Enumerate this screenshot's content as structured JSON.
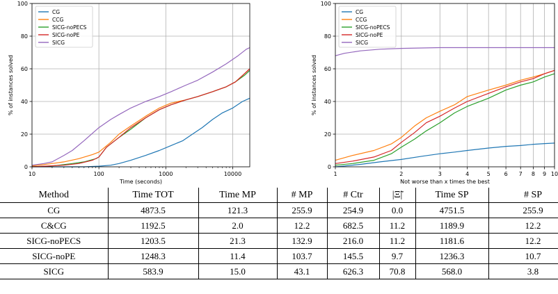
{
  "chart_data": [
    {
      "type": "line",
      "title": "",
      "xlabel": "Time (seconds)",
      "ylabel": "% of instances solved",
      "x_scale": "log",
      "xlim": [
        10,
        18000
      ],
      "ylim": [
        0,
        100
      ],
      "x_ticks": [
        10,
        100,
        1000,
        10000
      ],
      "x_tick_labels": [
        "10",
        "100",
        "1000",
        "10000"
      ],
      "y_ticks": [
        0,
        20,
        40,
        60,
        80,
        100
      ],
      "grid": true,
      "legend": "top-left",
      "series": [
        {
          "name": "CG",
          "color": "#1f77b4",
          "points": [
            [
              10,
              0
            ],
            [
              60,
              0
            ],
            [
              100,
              0.4
            ],
            [
              150,
              1
            ],
            [
              200,
              2
            ],
            [
              300,
              4
            ],
            [
              500,
              7
            ],
            [
              800,
              10
            ],
            [
              1200,
              13
            ],
            [
              1800,
              16
            ],
            [
              2500,
              20
            ],
            [
              3500,
              24
            ],
            [
              5000,
              29
            ],
            [
              7000,
              33
            ],
            [
              10000,
              36
            ],
            [
              14000,
              40
            ],
            [
              18000,
              42
            ]
          ]
        },
        {
          "name": "CCG",
          "color": "#ff7f0e",
          "points": [
            [
              10,
              0.5
            ],
            [
              20,
              2
            ],
            [
              30,
              3
            ],
            [
              50,
              5
            ],
            [
              80,
              7.5
            ],
            [
              100,
              9
            ],
            [
              150,
              15
            ],
            [
              200,
              20
            ],
            [
              300,
              25
            ],
            [
              500,
              31
            ],
            [
              800,
              36
            ],
            [
              1200,
              39
            ],
            [
              2000,
              41
            ],
            [
              3000,
              43
            ],
            [
              5000,
              46
            ],
            [
              8000,
              49
            ],
            [
              11000,
              52
            ],
            [
              15000,
              57
            ],
            [
              18000,
              60
            ]
          ]
        },
        {
          "name": "SICG-noPECS",
          "color": "#2ca02c",
          "points": [
            [
              10,
              0
            ],
            [
              20,
              0.5
            ],
            [
              40,
              2
            ],
            [
              60,
              3
            ],
            [
              90,
              5
            ],
            [
              100,
              6
            ],
            [
              130,
              12
            ],
            [
              200,
              18
            ],
            [
              300,
              23
            ],
            [
              500,
              30
            ],
            [
              800,
              35
            ],
            [
              1200,
              38
            ],
            [
              2000,
              41
            ],
            [
              3000,
              43
            ],
            [
              5000,
              46
            ],
            [
              8000,
              49
            ],
            [
              11000,
              52
            ],
            [
              15000,
              56
            ],
            [
              18000,
              59
            ]
          ]
        },
        {
          "name": "SICG-noPE",
          "color": "#d62728",
          "points": [
            [
              10,
              0
            ],
            [
              30,
              1
            ],
            [
              50,
              2
            ],
            [
              80,
              4
            ],
            [
              100,
              6
            ],
            [
              130,
              12
            ],
            [
              200,
              18
            ],
            [
              300,
              24
            ],
            [
              500,
              30
            ],
            [
              800,
              35
            ],
            [
              1200,
              38
            ],
            [
              2000,
              41
            ],
            [
              3000,
              43
            ],
            [
              5000,
              46
            ],
            [
              8000,
              49
            ],
            [
              11000,
              52
            ],
            [
              15000,
              57
            ],
            [
              18000,
              60
            ]
          ]
        },
        {
          "name": "SICG",
          "color": "#9467bd",
          "points": [
            [
              10,
              1
            ],
            [
              15,
              2
            ],
            [
              20,
              3
            ],
            [
              30,
              7
            ],
            [
              40,
              10
            ],
            [
              60,
              16
            ],
            [
              100,
              24
            ],
            [
              150,
              29
            ],
            [
              200,
              32
            ],
            [
              300,
              36
            ],
            [
              500,
              40
            ],
            [
              800,
              43
            ],
            [
              1200,
              46
            ],
            [
              2000,
              50
            ],
            [
              3000,
              53
            ],
            [
              5000,
              58
            ],
            [
              8000,
              63
            ],
            [
              12000,
              68
            ],
            [
              16000,
              72
            ],
            [
              18000,
              73
            ]
          ]
        }
      ]
    },
    {
      "type": "line",
      "title": "",
      "xlabel": "Not worse than x times the best",
      "ylabel": "% of instances solved",
      "x_scale": "log",
      "xlim": [
        1,
        10
      ],
      "ylim": [
        0,
        100
      ],
      "x_ticks": [
        1,
        2,
        3,
        4,
        5,
        6,
        7,
        8,
        9,
        10
      ],
      "x_tick_labels": [
        "1",
        "2",
        "3",
        "4",
        "5",
        "6",
        "7",
        "8",
        "9",
        "10"
      ],
      "y_ticks": [
        0,
        20,
        40,
        60,
        80,
        100
      ],
      "grid": true,
      "legend": "top-left",
      "series": [
        {
          "name": "CG",
          "color": "#1f77b4",
          "points": [
            [
              1,
              0
            ],
            [
              1.1,
              0.5
            ],
            [
              1.3,
              1.5
            ],
            [
              1.6,
              3
            ],
            [
              2,
              4.5
            ],
            [
              2.5,
              6.5
            ],
            [
              3,
              8
            ],
            [
              3.5,
              9
            ],
            [
              4,
              10
            ],
            [
              5,
              11.5
            ],
            [
              6,
              12.5
            ],
            [
              7,
              13
            ],
            [
              8,
              13.8
            ],
            [
              9,
              14.2
            ],
            [
              10,
              14.5
            ]
          ]
        },
        {
          "name": "CCG",
          "color": "#ff7f0e",
          "points": [
            [
              1,
              4
            ],
            [
              1.2,
              7
            ],
            [
              1.5,
              10
            ],
            [
              1.8,
              14
            ],
            [
              2,
              18
            ],
            [
              2.3,
              25
            ],
            [
              2.6,
              30
            ],
            [
              3,
              34
            ],
            [
              3.5,
              38
            ],
            [
              4,
              43
            ],
            [
              5,
              47
            ],
            [
              6,
              50
            ],
            [
              7,
              53
            ],
            [
              8,
              55
            ],
            [
              9,
              57
            ],
            [
              10,
              59
            ]
          ]
        },
        {
          "name": "SICG-noPECS",
          "color": "#2ca02c",
          "points": [
            [
              1,
              1
            ],
            [
              1.2,
              2
            ],
            [
              1.5,
              4
            ],
            [
              1.8,
              8
            ],
            [
              2,
              12
            ],
            [
              2.3,
              17
            ],
            [
              2.6,
              22
            ],
            [
              3,
              27
            ],
            [
              3.5,
              33
            ],
            [
              4,
              37
            ],
            [
              5,
              42
            ],
            [
              6,
              47
            ],
            [
              7,
              50
            ],
            [
              8,
              52
            ],
            [
              9,
              55
            ],
            [
              10,
              57
            ]
          ]
        },
        {
          "name": "SICG-noPE",
          "color": "#d62728",
          "points": [
            [
              1,
              2
            ],
            [
              1.2,
              3.5
            ],
            [
              1.5,
              6
            ],
            [
              1.8,
              10
            ],
            [
              2,
              15
            ],
            [
              2.3,
              21
            ],
            [
              2.6,
              27
            ],
            [
              3,
              31
            ],
            [
              3.5,
              36
            ],
            [
              4,
              40
            ],
            [
              5,
              45
            ],
            [
              6,
              49
            ],
            [
              7,
              52
            ],
            [
              8,
              54
            ],
            [
              9,
              57
            ],
            [
              10,
              59
            ]
          ]
        },
        {
          "name": "SICG",
          "color": "#9467bd",
          "points": [
            [
              1,
              68
            ],
            [
              1.1,
              69.5
            ],
            [
              1.3,
              71
            ],
            [
              1.6,
              72
            ],
            [
              2,
              72.5
            ],
            [
              3,
              73
            ],
            [
              5,
              73
            ],
            [
              10,
              73
            ]
          ]
        }
      ]
    }
  ],
  "table": {
    "headers": [
      "Method",
      "Time TOT",
      "Time MP",
      "# MP",
      "# Ctr",
      "|Ξ̃|",
      "Time SP",
      "# SP"
    ],
    "rows": [
      [
        "CG",
        "4873.5",
        "121.3",
        "255.9",
        "254.9",
        "0.0",
        "4751.5",
        "255.9"
      ],
      [
        "C&CG",
        "1192.5",
        "2.0",
        "12.2",
        "682.5",
        "11.2",
        "1189.9",
        "12.2"
      ],
      [
        "SICG-noPECS",
        "1203.5",
        "21.3",
        "132.9",
        "216.0",
        "11.2",
        "1181.6",
        "12.2"
      ],
      [
        "SICG-noPE",
        "1248.3",
        "11.4",
        "103.7",
        "145.5",
        "9.7",
        "1236.3",
        "10.7"
      ],
      [
        "SICG",
        "583.9",
        "15.0",
        "43.1",
        "626.3",
        "70.8",
        "568.0",
        "3.8"
      ]
    ]
  }
}
